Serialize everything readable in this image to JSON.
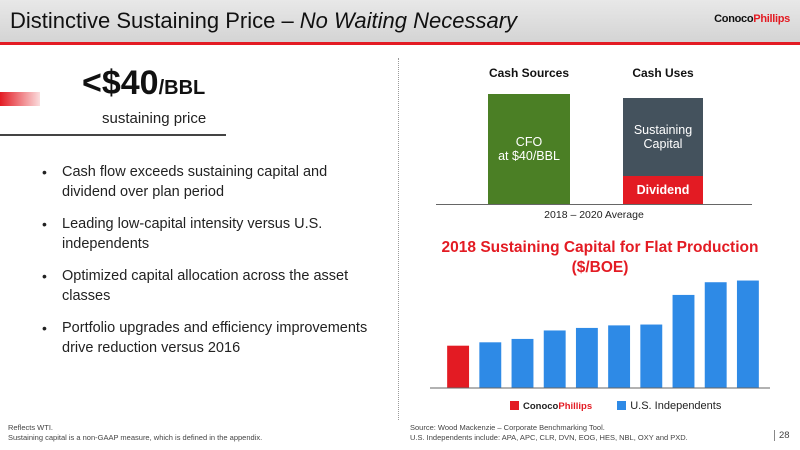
{
  "header": {
    "title_main": "Distinctive Sustaining Price – ",
    "title_italic": "No Waiting Necessary",
    "logo_conoco": "Conoco",
    "logo_phillips": "Phillips"
  },
  "price": {
    "big": "<$40",
    "unit": "/BBL",
    "subtitle": "sustaining price"
  },
  "bullets": [
    "Cash flow exceeds sustaining capital and dividend over plan period",
    "Leading low-capital intensity versus U.S. independents",
    "Optimized capital allocation across the asset classes",
    "Portfolio upgrades and efficiency improvements drive reduction versus 2016"
  ],
  "cash_chart": {
    "sources_label": "Cash Sources",
    "uses_label": "Cash Uses",
    "cfo_line1": "CFO",
    "cfo_line2": "at $40/BBL",
    "sustaining_line1": "Sustaining",
    "sustaining_line2": "Capital",
    "dividend_label": "Dividend",
    "average_label": "2018 – 2020 Average"
  },
  "chart_data": {
    "type": "bar",
    "title": "2018 Sustaining Capital for Flat Production",
    "subtitle": "($/BOE)",
    "categories": [
      "",
      "",
      "",
      "",
      "",
      "",
      "",
      "",
      "",
      ""
    ],
    "values": [
      5.0,
      5.4,
      5.8,
      6.8,
      7.1,
      7.4,
      7.5,
      11.0,
      12.5,
      12.7
    ],
    "colors": [
      "#e31b23",
      "#2e8ae6",
      "#2e8ae6",
      "#2e8ae6",
      "#2e8ae6",
      "#2e8ae6",
      "#2e8ae6",
      "#2e8ae6",
      "#2e8ae6",
      "#2e8ae6"
    ],
    "ylim": [
      0,
      13
    ],
    "grid": false,
    "legend": [
      {
        "name": "ConocoPhillips",
        "color": "#e31b23"
      },
      {
        "name": "U.S. Independents",
        "color": "#2e8ae6"
      }
    ],
    "legend_position": "bottom"
  },
  "footer": {
    "left_line1": "Reflects WTI.",
    "left_line2": "Sustaining capital is a non-GAAP measure, which is defined in the appendix.",
    "right_line1": "Source: Wood Mackenzie – Corporate Benchmarking Tool.",
    "right_line2": "U.S. Independents include: APA, APC, CLR, DVN, EOG, HES, NBL, OXY and PXD.",
    "page_number": "28"
  }
}
